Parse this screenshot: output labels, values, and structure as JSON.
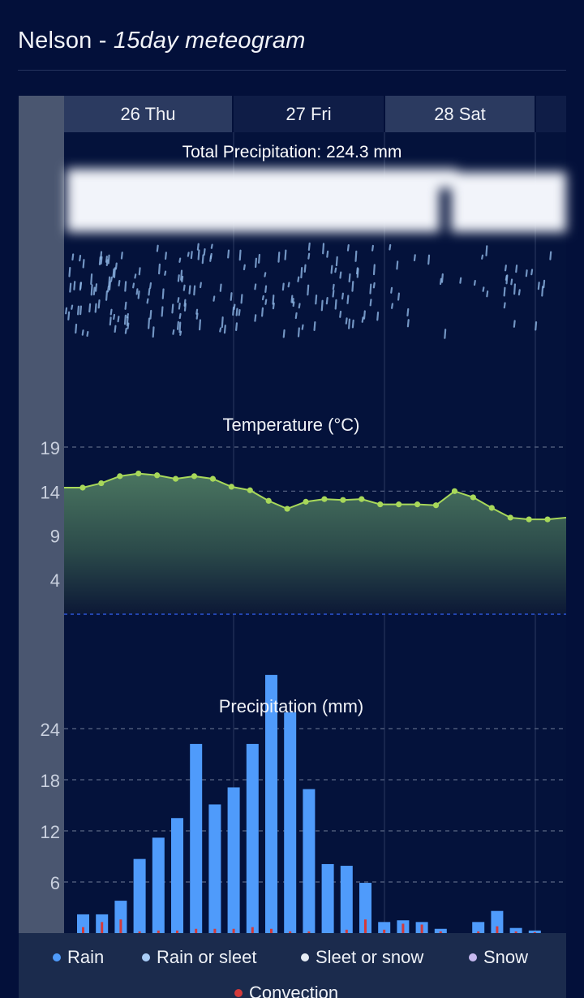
{
  "header": {
    "location": "Nelson",
    "separator": " - ",
    "subtitle": "15day meteogram"
  },
  "days": [
    {
      "label": "26 Thu"
    },
    {
      "label": "27 Fri"
    },
    {
      "label": "28 Sat"
    }
  ],
  "precip_total_label": "Total Precipitation: 224.3 mm",
  "chart_data": [
    {
      "type": "line",
      "title": "Temperature (°C)",
      "y_ticks": [
        19,
        14,
        9,
        4
      ],
      "ylim": [
        0,
        21
      ],
      "values": [
        14.4,
        14.4,
        14.9,
        15.7,
        16.0,
        15.8,
        15.4,
        15.7,
        15.4,
        14.5,
        14.1,
        12.9,
        12.0,
        12.8,
        13.1,
        13.0,
        13.1,
        12.5,
        12.5,
        12.5,
        12.4,
        14.0,
        13.3,
        12.1,
        11.0,
        10.8,
        10.8,
        11.0
      ],
      "series": [
        {
          "color": "#a8d85a",
          "fill": "#3f6a55"
        }
      ],
      "grid": true
    },
    {
      "type": "bar",
      "title": "Precipitation (mm)",
      "y_ticks": [
        24,
        18,
        12,
        6
      ],
      "ylim": [
        0,
        30
      ],
      "series": [
        {
          "name": "Rain",
          "color": "#4f9bfb",
          "values": [
            2.2,
            2.2,
            3.8,
            8.7,
            11.2,
            13.5,
            22.2,
            15.1,
            17.1,
            22.2,
            30.3,
            25.9,
            16.9,
            8.1,
            7.9,
            5.9,
            1.3,
            1.5,
            1.3,
            0.5,
            0,
            1.3,
            2.6,
            0.6,
            0.3,
            0
          ]
        },
        {
          "name": "Convection",
          "color": "#d43a3a",
          "values": [
            0.7,
            1.3,
            1.6,
            0.2,
            0.3,
            0.3,
            0.5,
            0.5,
            0.5,
            0.7,
            0.5,
            0.2,
            0.2,
            0,
            0.4,
            1.6,
            0.4,
            1.1,
            1.0,
            0.2,
            0,
            0.2,
            0.8,
            0.2,
            0.1,
            0
          ]
        }
      ],
      "grid": true
    }
  ],
  "legend": {
    "items": [
      {
        "label": "Rain",
        "color": "#4f9bfb"
      },
      {
        "label": "Rain or sleet",
        "color": "#a9cdf7"
      },
      {
        "label": "Sleet or snow",
        "color": "#e6ecf4"
      },
      {
        "label": "Snow",
        "color": "#c6b8ef"
      },
      {
        "label": "Convection",
        "color": "#d43a3a"
      }
    ]
  },
  "colors": {
    "background": "#03103a",
    "panel": "#0b1b44",
    "day_header": "#2b3a60",
    "axis_strip": "#4a5670",
    "legend_bg": "#1b2b4d"
  }
}
